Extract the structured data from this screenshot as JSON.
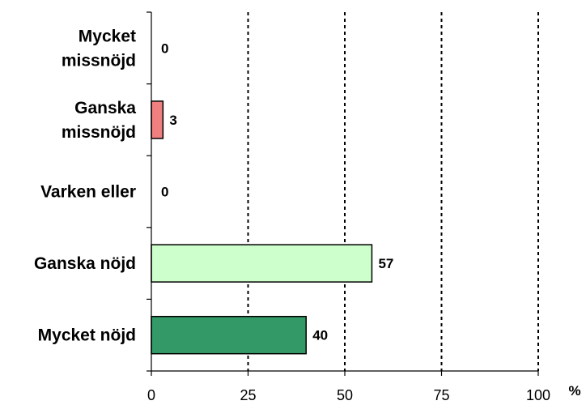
{
  "chart_data": {
    "type": "bar",
    "orientation": "horizontal",
    "categories": [
      [
        "Mycket",
        "missnöjd"
      ],
      [
        "Ganska",
        "missnöjd"
      ],
      [
        "Varken eller"
      ],
      [
        "Ganska nöjd"
      ],
      [
        "Mycket nöjd"
      ]
    ],
    "values": [
      0,
      3,
      0,
      57,
      40
    ],
    "value_labels": [
      "0",
      "3",
      "0",
      "57",
      "40"
    ],
    "bar_colors": [
      "#f08080",
      "#f08080",
      "#cccccc",
      "#ccffcc",
      "#339966"
    ],
    "xlim": [
      0,
      100
    ],
    "x_ticks": [
      0,
      25,
      50,
      75,
      100
    ],
    "x_tick_labels": [
      "0",
      "25",
      "50",
      "75",
      "100"
    ],
    "x_unit": "%",
    "grid": "vertical dashed",
    "legend": "none"
  }
}
